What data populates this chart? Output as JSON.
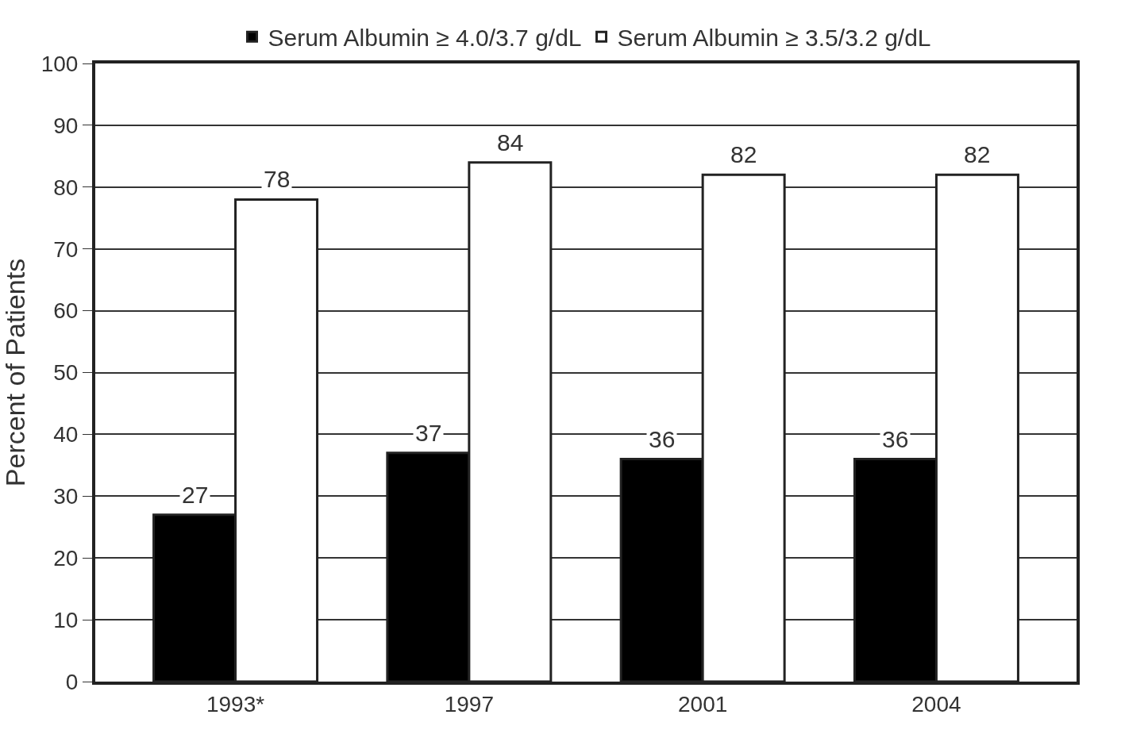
{
  "chart_data": {
    "type": "bar",
    "ylabel": "Percent of Patients",
    "categories": [
      "1993*",
      "1997",
      "2001",
      "2004"
    ],
    "series": [
      {
        "name": "Serum Albumin ≥ 4.0/3.7 g/dL",
        "color": "#000000",
        "values": [
          27,
          37,
          36,
          36
        ]
      },
      {
        "name": "Serum Albumin ≥ 3.5/3.2 g/dL",
        "color": "#ffffff",
        "values": [
          78,
          84,
          82,
          82
        ]
      }
    ],
    "ylim": [
      0,
      100
    ],
    "yticks": [
      0,
      10,
      20,
      30,
      40,
      50,
      60,
      70,
      80,
      90,
      100
    ],
    "grid": "y",
    "legend": "top",
    "data_labels": true
  }
}
